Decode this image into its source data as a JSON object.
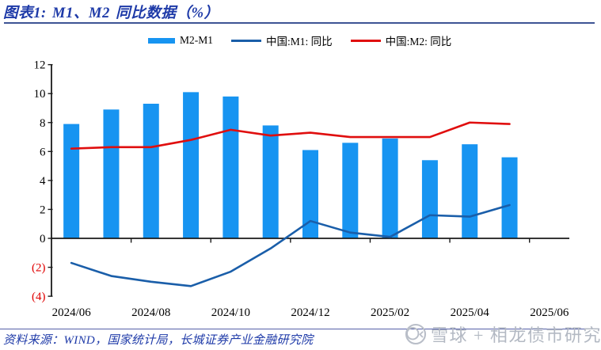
{
  "header": {
    "title": "图表1: M1、M2 同比数据（%）",
    "title_color": "#1E3AA8",
    "rule_color": "#3D5494"
  },
  "legend": {
    "items": [
      {
        "label": "M2-M1",
        "marker": "bar",
        "color": "#1794F1"
      },
      {
        "label": "中国:M1: 同比",
        "marker": "line",
        "color": "#1A5EA9"
      },
      {
        "label": "中国:M2: 同比",
        "marker": "line",
        "color": "#E00E0E"
      }
    ]
  },
  "chart_data": {
    "type": "combo",
    "title": "图表1: M1、M2 同比数据（%）",
    "categories": [
      "2024/06",
      "2024/07",
      "2024/08",
      "2024/09",
      "2024/10",
      "2024/11",
      "2024/12",
      "2025/01",
      "2025/02",
      "2025/03",
      "2025/04",
      "2025/05",
      "2025/06"
    ],
    "series": [
      {
        "name": "M2-M1",
        "type": "bar",
        "color": "#1794F1",
        "values": [
          7.9,
          8.9,
          9.3,
          10.1,
          9.8,
          7.8,
          6.1,
          6.6,
          6.9,
          5.4,
          6.5,
          5.6,
          null
        ]
      },
      {
        "name": "中国:M1: 同比",
        "type": "line",
        "color": "#1A5EA9",
        "values": [
          -1.7,
          -2.6,
          -3.0,
          -3.3,
          -2.3,
          -0.7,
          1.2,
          0.4,
          0.1,
          1.6,
          1.5,
          2.3,
          null
        ]
      },
      {
        "name": "中国:M2: 同比",
        "type": "line",
        "color": "#E00E0E",
        "values": [
          6.2,
          6.3,
          6.3,
          6.8,
          7.5,
          7.1,
          7.3,
          7.0,
          7.0,
          7.0,
          8.0,
          7.9,
          null
        ]
      }
    ],
    "ylim": [
      -4,
      12
    ],
    "ytick_step": 2,
    "xtick_labels": [
      "2024/06",
      "2024/08",
      "2024/10",
      "2024/12",
      "2025/02",
      "2025/04",
      "2025/06"
    ],
    "negative_tick_style": "parentheses",
    "negative_tick_color": "#E00000",
    "axis_color": "#1A1A1A",
    "grid": false,
    "legend_position": "top"
  },
  "footer": {
    "source": "资料来源：WIND，国家统计局，长城证券产业金融研究院",
    "source_color": "#1E3AA8",
    "rule_color": "#5560A8",
    "watermark_text": "雪球 + 相龙债市研究",
    "watermark_color": "#B3B9C3"
  }
}
